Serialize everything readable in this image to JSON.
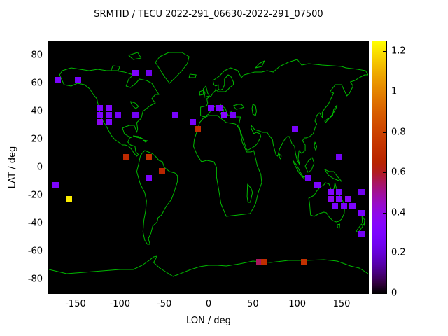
{
  "chart_data": {
    "type": "heatmap",
    "title": "SRMTID / TECU 2022-291_06630-2022-291_07500",
    "xlabel": "LON / deg",
    "ylabel": "LAT / deg",
    "xlim": [
      -180,
      180
    ],
    "ylim": [
      -90,
      90
    ],
    "x_ticks": [
      -150,
      -100,
      -50,
      0,
      50,
      100,
      150
    ],
    "y_ticks": [
      80,
      60,
      40,
      20,
      0,
      -20,
      -40,
      -60,
      -80
    ],
    "grid": false,
    "plot_background": "#000000",
    "coastline_color": "#00b800",
    "value_units": "TECU",
    "cell_bin_deg": 5,
    "colorbar": {
      "ticks": [
        0,
        0.2,
        0.4,
        0.6,
        0.8,
        1,
        1.2
      ],
      "range": [
        0,
        1.25
      ],
      "colormap": "gnuplot",
      "position": "right"
    },
    "cells": [
      {
        "lon": -170,
        "lat": 62.5,
        "value": 0.3
      },
      {
        "lon": -147.5,
        "lat": 62.5,
        "value": 0.27
      },
      {
        "lon": -82.5,
        "lat": 67.5,
        "value": 0.3
      },
      {
        "lon": -67.5,
        "lat": 67.5,
        "value": 0.24
      },
      {
        "lon": -122.5,
        "lat": 42.5,
        "value": 0.3
      },
      {
        "lon": -112.5,
        "lat": 42.5,
        "value": 0.33
      },
      {
        "lon": -122.5,
        "lat": 37.5,
        "value": 0.3
      },
      {
        "lon": -112.5,
        "lat": 37.5,
        "value": 0.27
      },
      {
        "lon": -102.5,
        "lat": 37.5,
        "value": 0.25
      },
      {
        "lon": -122.5,
        "lat": 32.5,
        "value": 0.38
      },
      {
        "lon": -112.5,
        "lat": 32.5,
        "value": 0.3
      },
      {
        "lon": -82.5,
        "lat": 37.5,
        "value": 0.25
      },
      {
        "lon": -37.5,
        "lat": 37.5,
        "value": 0.28
      },
      {
        "lon": 2.5,
        "lat": 42.5,
        "value": 0.3
      },
      {
        "lon": 12.5,
        "lat": 42.5,
        "value": 0.3
      },
      {
        "lon": 17.5,
        "lat": 37.5,
        "value": 0.33
      },
      {
        "lon": 27.5,
        "lat": 37.5,
        "value": 0.26
      },
      {
        "lon": -17.5,
        "lat": 32.5,
        "value": 0.28
      },
      {
        "lon": -12.5,
        "lat": 27.5,
        "value": 0.7
      },
      {
        "lon": -92.5,
        "lat": 7.5,
        "value": 0.68
      },
      {
        "lon": -67.5,
        "lat": 7.5,
        "value": 0.72
      },
      {
        "lon": -52.5,
        "lat": -2.5,
        "value": 0.66
      },
      {
        "lon": -67.5,
        "lat": -7.5,
        "value": 0.3
      },
      {
        "lon": -172.5,
        "lat": -12.5,
        "value": 0.3
      },
      {
        "lon": -157.5,
        "lat": -22.5,
        "value": 1.22
      },
      {
        "lon": 97.5,
        "lat": 27.5,
        "value": 0.28
      },
      {
        "lon": 147.5,
        "lat": 7.5,
        "value": 0.26
      },
      {
        "lon": 112.5,
        "lat": -7.5,
        "value": 0.26
      },
      {
        "lon": 122.5,
        "lat": -12.5,
        "value": 0.3
      },
      {
        "lon": 137.5,
        "lat": -17.5,
        "value": 0.33
      },
      {
        "lon": 147.5,
        "lat": -17.5,
        "value": 0.28
      },
      {
        "lon": 172.5,
        "lat": -17.5,
        "value": 0.24
      },
      {
        "lon": 137.5,
        "lat": -22.5,
        "value": 0.38
      },
      {
        "lon": 147.5,
        "lat": -22.5,
        "value": 0.33
      },
      {
        "lon": 157.5,
        "lat": -22.5,
        "value": 0.36
      },
      {
        "lon": 142.5,
        "lat": -27.5,
        "value": 0.3
      },
      {
        "lon": 152.5,
        "lat": -27.5,
        "value": 0.28
      },
      {
        "lon": 162.5,
        "lat": -27.5,
        "value": 0.3
      },
      {
        "lon": 172.5,
        "lat": -32.5,
        "value": 0.28
      },
      {
        "lon": 172.5,
        "lat": -47.5,
        "value": 0.26
      },
      {
        "lon": 57.5,
        "lat": -67.5,
        "value": 0.55
      },
      {
        "lon": 62.5,
        "lat": -67.5,
        "value": 0.7
      },
      {
        "lon": 107.5,
        "lat": -67.5,
        "value": 0.72
      }
    ]
  }
}
